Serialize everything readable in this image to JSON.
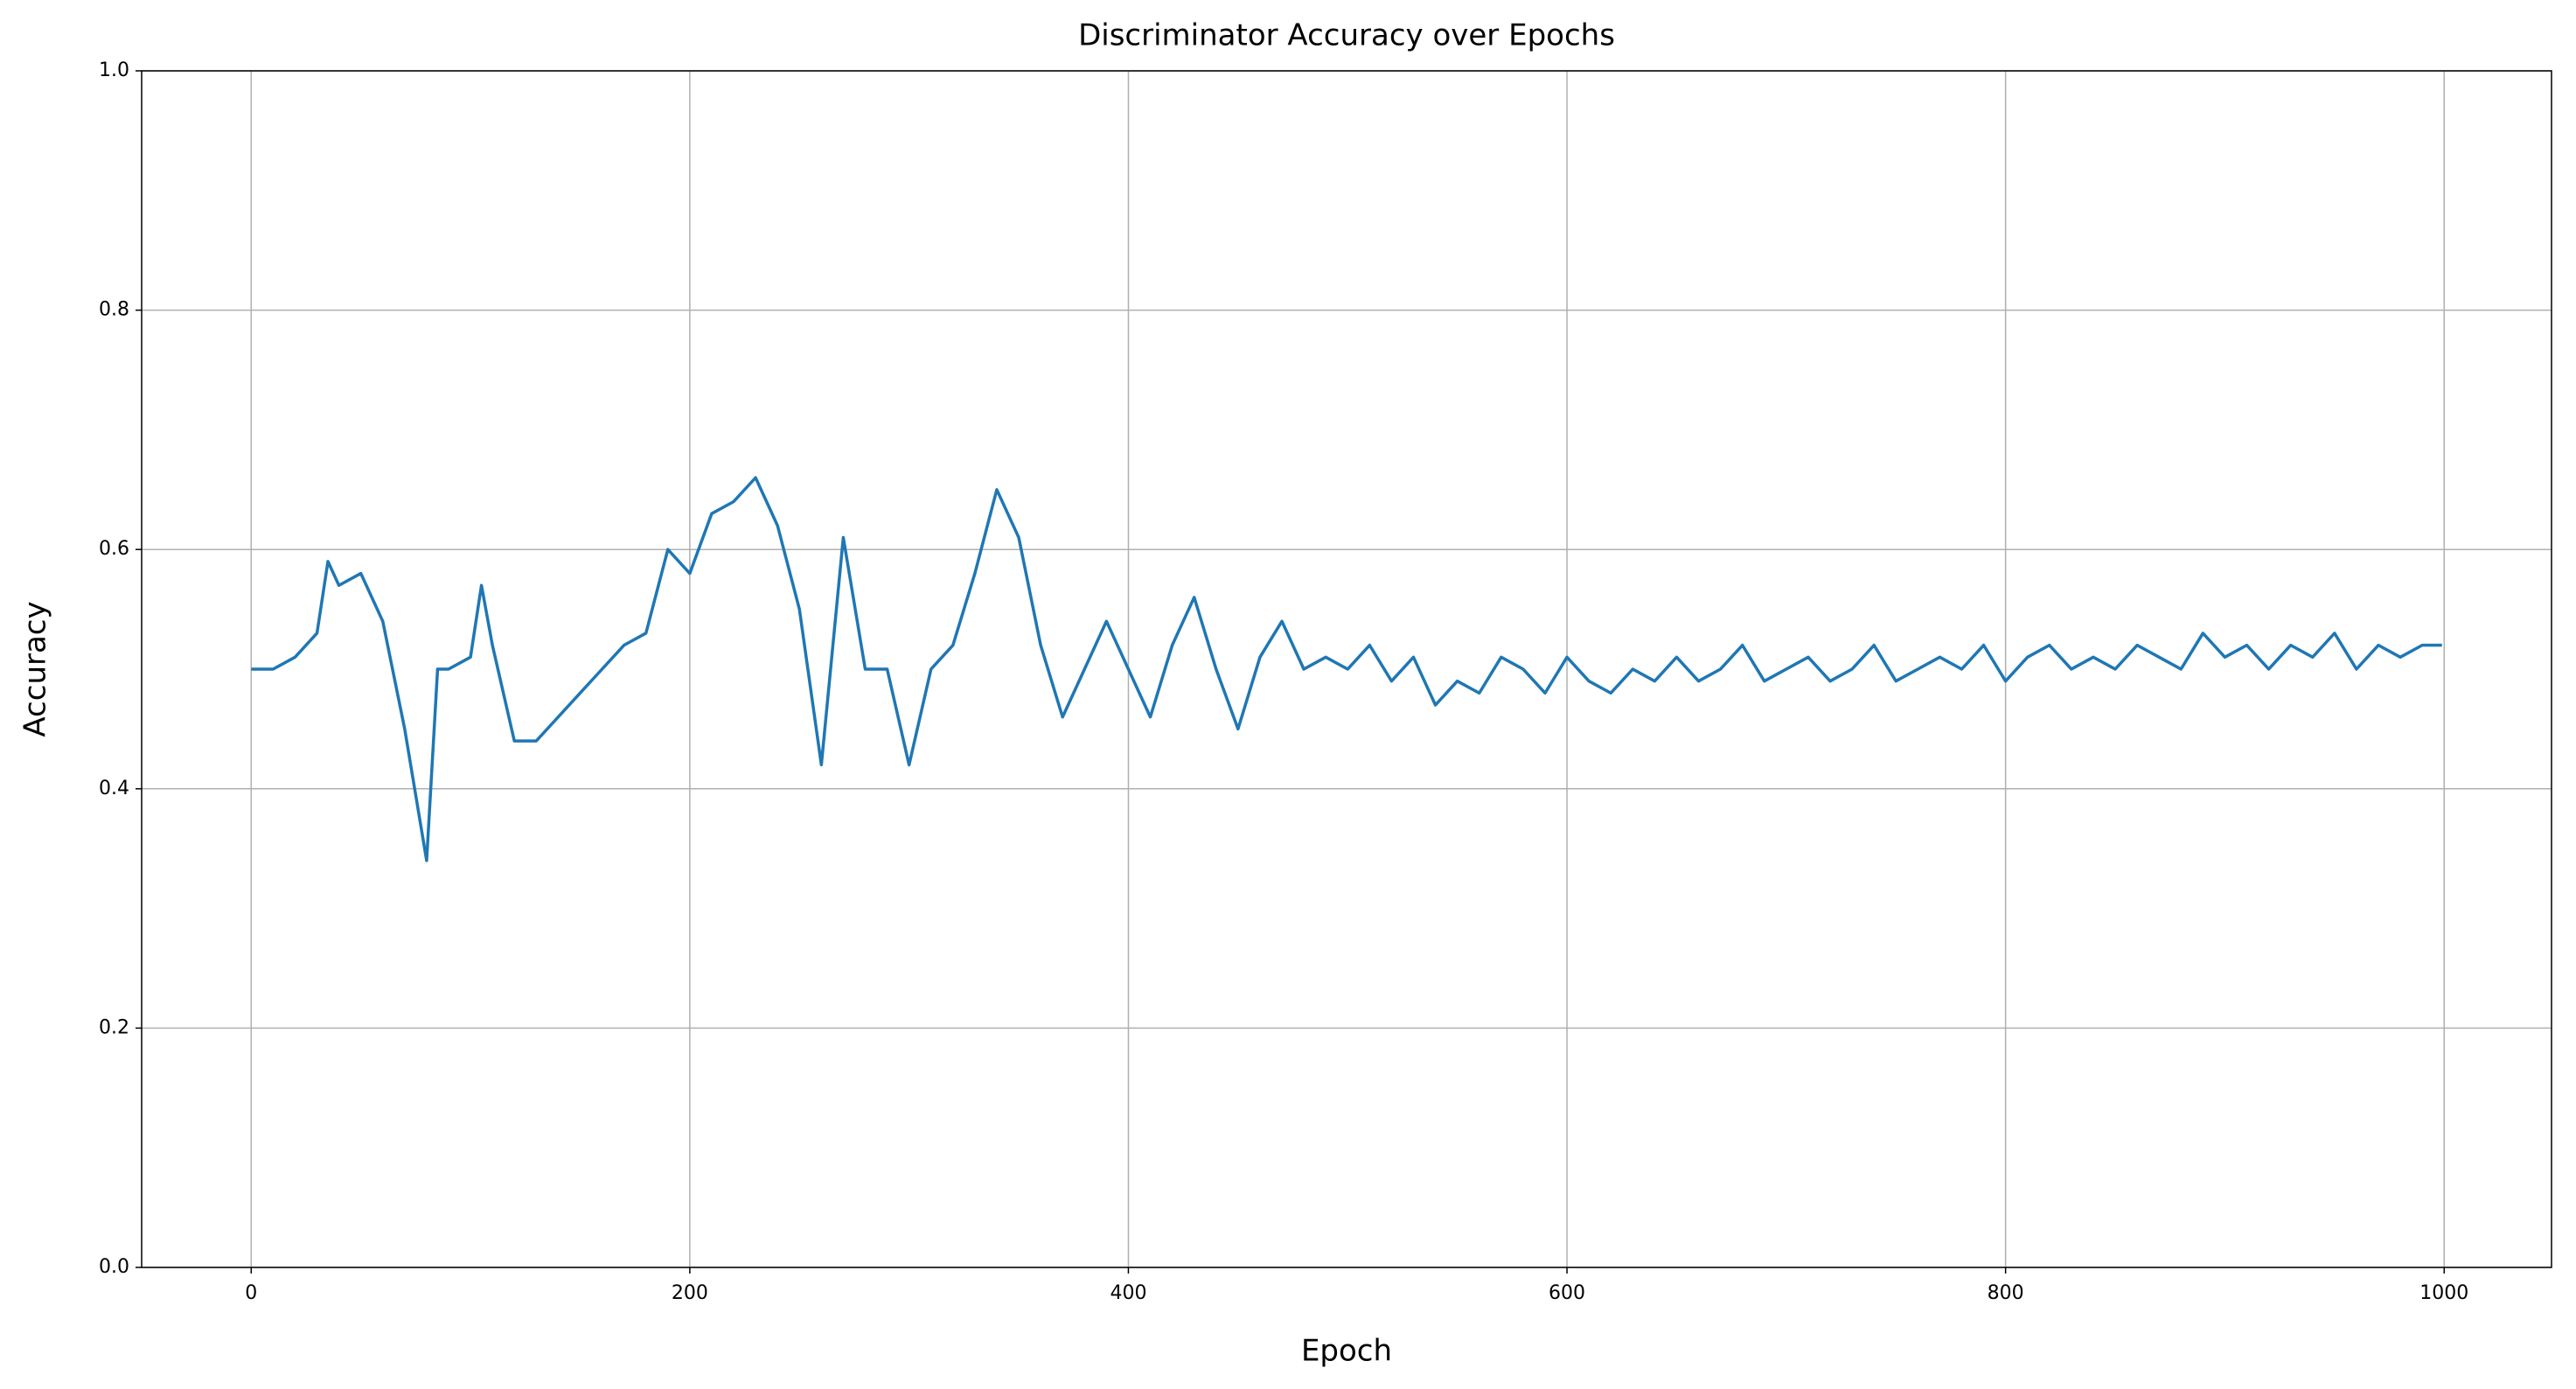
{
  "chart_data": {
    "type": "line",
    "title": "Discriminator Accuracy over Epochs",
    "xlabel": "Epoch",
    "ylabel": "Accuracy",
    "color": "#1f77b4",
    "x": [
      0,
      10,
      20,
      30,
      35,
      40,
      50,
      60,
      70,
      80,
      85,
      90,
      100,
      105,
      110,
      120,
      130,
      140,
      150,
      160,
      170,
      180,
      190,
      200,
      210,
      220,
      230,
      240,
      250,
      260,
      270,
      280,
      290,
      300,
      310,
      320,
      330,
      340,
      350,
      360,
      370,
      380,
      390,
      400,
      410,
      420,
      430,
      440,
      450,
      460,
      470,
      480,
      490,
      500,
      510,
      520,
      530,
      540,
      550,
      560,
      570,
      580,
      590,
      600,
      610,
      620,
      630,
      640,
      650,
      660,
      670,
      680,
      690,
      700,
      710,
      720,
      730,
      740,
      750,
      760,
      770,
      780,
      790,
      800,
      810,
      820,
      830,
      840,
      850,
      860,
      870,
      880,
      890,
      900,
      910,
      920,
      930,
      940,
      950,
      960,
      970,
      980,
      990,
      999
    ],
    "values": [
      0.5,
      0.5,
      0.51,
      0.53,
      0.59,
      0.57,
      0.58,
      0.54,
      0.45,
      0.34,
      0.5,
      0.5,
      0.51,
      0.57,
      0.52,
      0.44,
      0.44,
      0.46,
      0.48,
      0.5,
      0.52,
      0.53,
      0.6,
      0.58,
      0.63,
      0.64,
      0.66,
      0.62,
      0.55,
      0.42,
      0.61,
      0.5,
      0.5,
      0.42,
      0.5,
      0.52,
      0.58,
      0.65,
      0.61,
      0.52,
      0.46,
      0.5,
      0.54,
      0.5,
      0.46,
      0.52,
      0.56,
      0.5,
      0.45,
      0.51,
      0.54,
      0.5,
      0.51,
      0.5,
      0.52,
      0.49,
      0.51,
      0.47,
      0.49,
      0.48,
      0.51,
      0.5,
      0.48,
      0.51,
      0.49,
      0.48,
      0.5,
      0.49,
      0.51,
      0.49,
      0.5,
      0.52,
      0.49,
      0.5,
      0.51,
      0.49,
      0.5,
      0.52,
      0.49,
      0.5,
      0.51,
      0.5,
      0.52,
      0.49,
      0.51,
      0.52,
      0.5,
      0.51,
      0.5,
      0.52,
      0.51,
      0.5,
      0.53,
      0.51,
      0.52,
      0.5,
      0.52,
      0.51,
      0.53,
      0.5,
      0.52,
      0.51,
      0.52,
      0.52
    ],
    "xlim": [
      -49.95,
      1048.95
    ],
    "xticks": [
      0,
      200,
      400,
      600,
      800,
      1000
    ],
    "ylim": [
      0,
      1
    ],
    "yticks": [
      {
        "value": 0,
        "label": "0.0"
      },
      0.2,
      0.4,
      0.6,
      0.8,
      {
        "value": 1,
        "label": "1.0"
      }
    ],
    "grid": true
  }
}
